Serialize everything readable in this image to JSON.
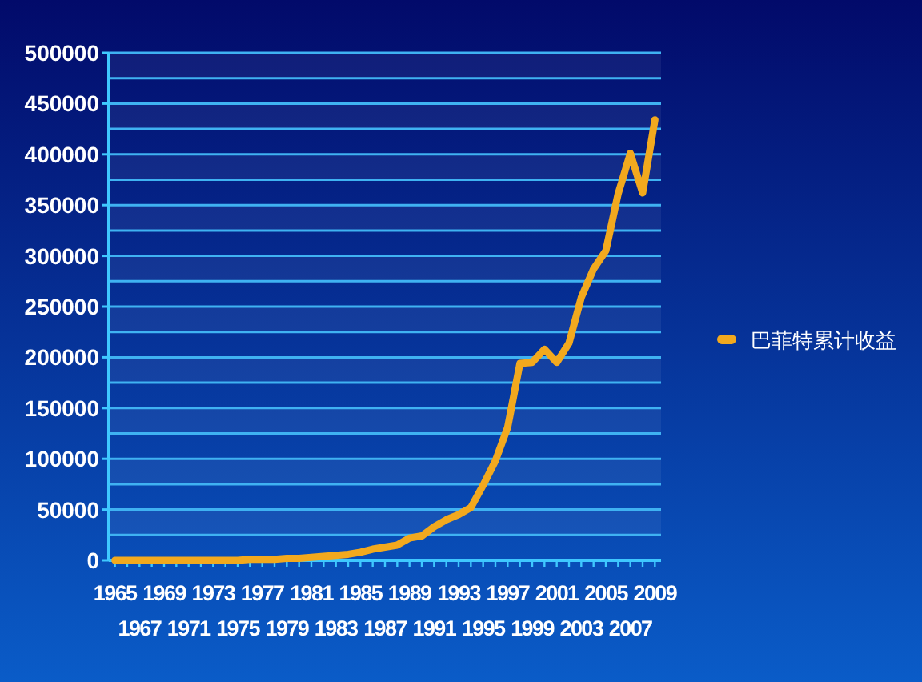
{
  "chart_data": {
    "type": "line",
    "categories": [
      "1965",
      null,
      "1967",
      null,
      "1969",
      null,
      "1971",
      null,
      "1973",
      null,
      "1975",
      null,
      "1977",
      null,
      "1979",
      null,
      "1981",
      null,
      "1983",
      null,
      "1985",
      null,
      "1987",
      null,
      "1989",
      null,
      "1991",
      null,
      "1993",
      null,
      "1995",
      null,
      "1997",
      null,
      "1999",
      null,
      "2001",
      null,
      "2003",
      null,
      "2005",
      null,
      "2007",
      null,
      "2009"
    ],
    "series": [
      {
        "name": "巴菲特累计收益",
        "color": "#f2a91e",
        "values": [
          0,
          0,
          0,
          0,
          0,
          0,
          0,
          0,
          0,
          0,
          0,
          1000,
          1000,
          1000,
          2000,
          2000,
          3000,
          4000,
          5000,
          6000,
          8000,
          11000,
          13000,
          15000,
          22000,
          24000,
          33000,
          40000,
          45000,
          52000,
          74000,
          98000,
          131000,
          194000,
          195000,
          208000,
          195000,
          214000,
          259000,
          287000,
          305000,
          361000,
          401000,
          362000,
          434000
        ]
      }
    ],
    "ylim": [
      0,
      500000
    ],
    "yticks": [
      0,
      {
        "value": 25000,
        "label": null
      },
      50000,
      {
        "value": 75000,
        "label": null
      },
      100000,
      {
        "value": 125000,
        "label": null
      },
      150000,
      {
        "value": 175000,
        "label": null
      },
      200000,
      {
        "value": 225000,
        "label": null
      },
      250000,
      {
        "value": 275000,
        "label": null
      },
      300000,
      {
        "value": 325000,
        "label": null
      },
      350000,
      {
        "value": 375000,
        "label": null
      },
      400000,
      {
        "value": 425000,
        "label": null
      },
      450000,
      {
        "value": 475000,
        "label": null
      },
      500000
    ],
    "grid": "y",
    "legend": "right",
    "marker": "none",
    "line_style": "solid"
  }
}
